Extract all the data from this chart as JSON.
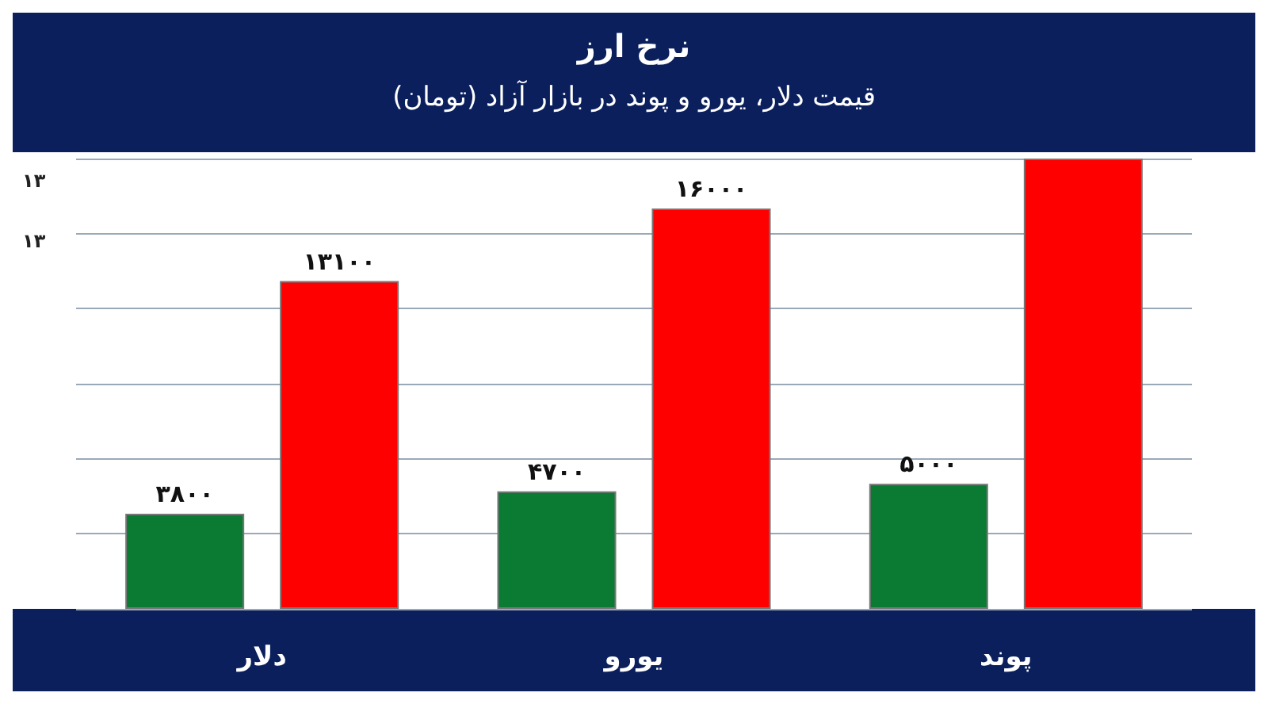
{
  "chart_data": {
    "type": "bar",
    "title": "نرخ ارز",
    "subtitle": "قیمت دلار، یورو و پوند در بازار آزاد (تومان)",
    "categories": [
      "دلار",
      "یورو",
      "پوند"
    ],
    "series": [
      {
        "color": "#0b7a32",
        "values": [
          3800,
          4700,
          5000
        ],
        "value_labels": [
          "۳۸۰۰",
          "۴۷۰۰",
          "۵۰۰۰"
        ]
      },
      {
        "color": "#ff0000",
        "values": [
          13100,
          16000,
          18000
        ],
        "value_labels": [
          "۱۳۱۰۰",
          "۱۶۰۰۰",
          null
        ]
      }
    ],
    "annotations": [
      "۱۳",
      "۱۳"
    ],
    "grid": "y"
  }
}
